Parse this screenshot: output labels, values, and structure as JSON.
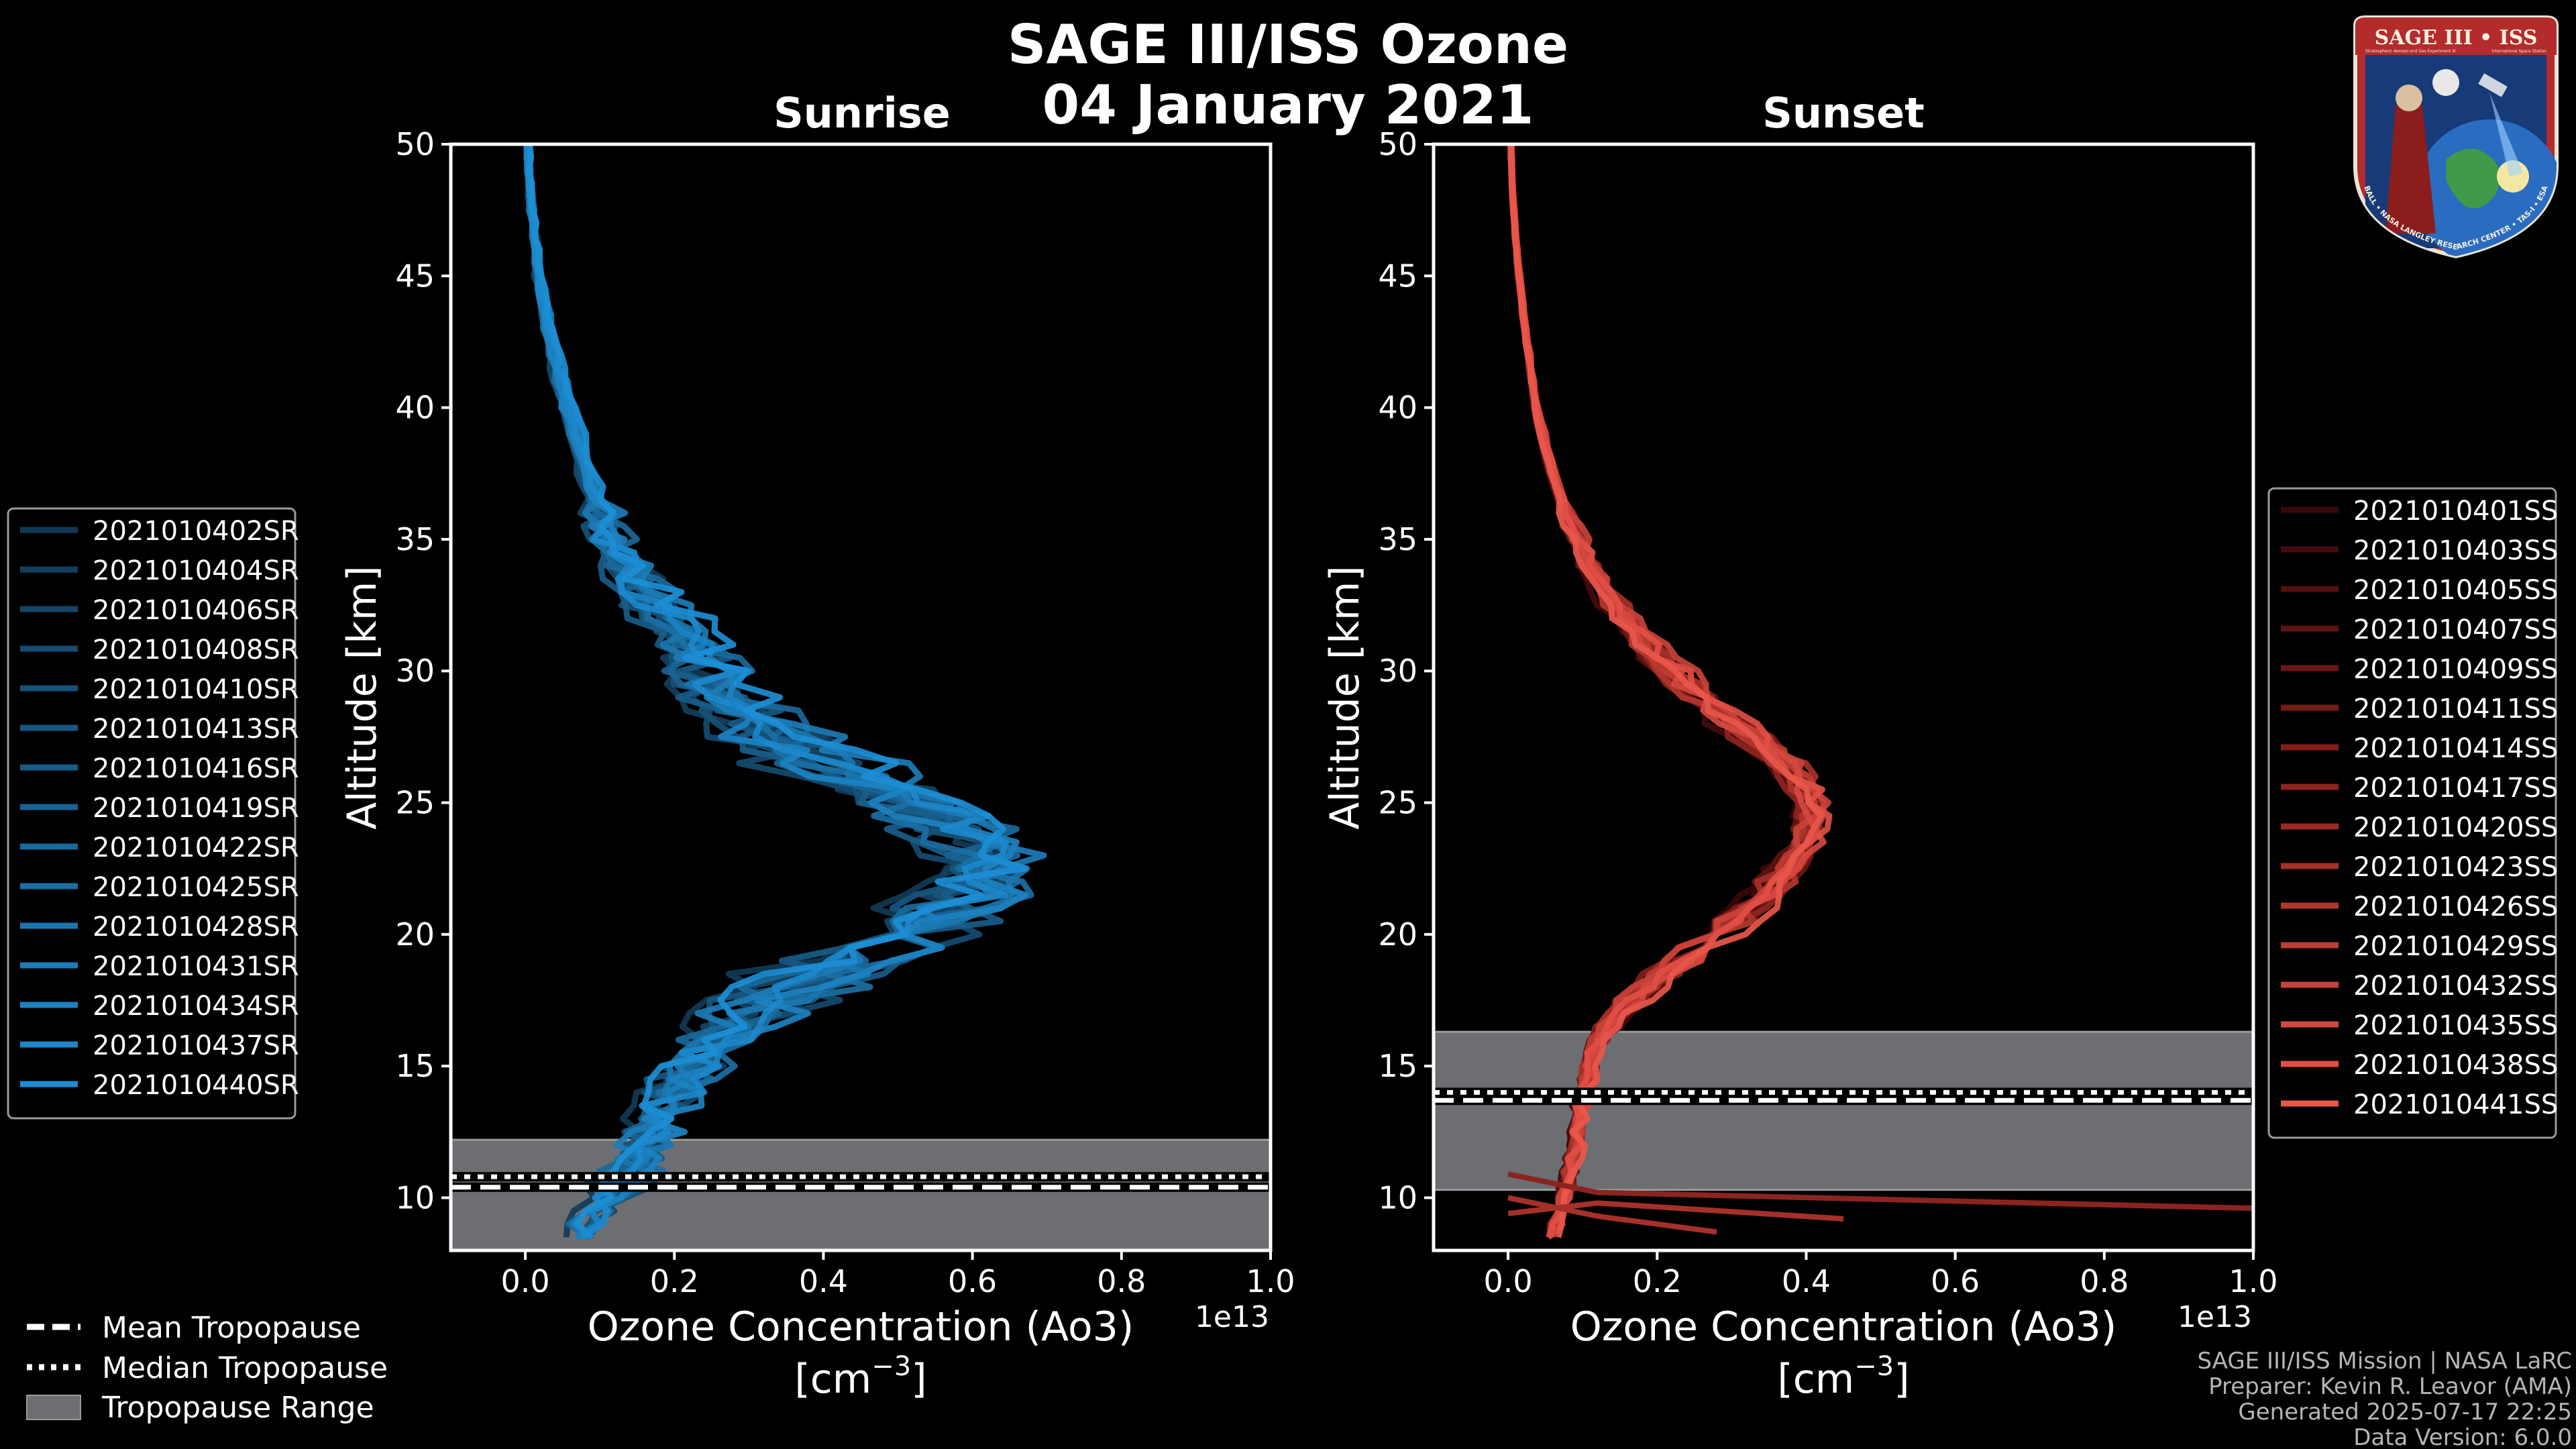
{
  "title": "SAGE III/ISS Ozone",
  "date": "04 January 2021",
  "logo": {
    "top_text": "SAGE III • ISS",
    "sub_left": "Stratospheric Aerosol and Gas Experiment III",
    "sub_right": "International Space Station",
    "ring_text": "BALL • NASA LANGLEY RESEARCH CENTER • TAS-I • ESA"
  },
  "footer": {
    "line1": "SAGE III/ISS Mission | NASA LaRC",
    "line2": "Preparer: Kevin R. Leavor (AMA)",
    "line3": "Generated 2025-07-17 22:25",
    "line4": "Data Version: 6.0.0"
  },
  "tropopause_legend": [
    {
      "label": "Mean Tropopause",
      "style": "dashed"
    },
    {
      "label": "Median Tropopause",
      "style": "dotted"
    },
    {
      "label": "Tropopause Range",
      "style": "patch"
    }
  ],
  "chart_data": [
    {
      "type": "line",
      "panel": "sunrise",
      "title": "Sunrise",
      "xlabel": "Ozone Concentration (Ao3)",
      "xunit": "[cm",
      "xunit_sup": "−3",
      "xunit_end": "]",
      "ylabel": "Altitude [km]",
      "xlim": [
        -0.1,
        1.0
      ],
      "ylim": [
        8,
        50
      ],
      "x_offset_label": "1e13",
      "xticks": [
        0.0,
        0.2,
        0.4,
        0.6,
        0.8,
        1.0
      ],
      "xtick_labels": [
        "0.0",
        "0.2",
        "0.4",
        "0.6",
        "0.8",
        "1.0"
      ],
      "yticks": [
        10,
        15,
        20,
        25,
        30,
        35,
        40,
        45,
        50
      ],
      "ytick_labels": [
        "10",
        "15",
        "20",
        "25",
        "30",
        "35",
        "40",
        "45",
        "50"
      ],
      "tropopause_range": [
        8.0,
        12.2
      ],
      "mean_tropopause": 10.4,
      "median_tropopause": 10.8,
      "legend_position": "left",
      "series_labels": [
        "2021010402SR",
        "2021010404SR",
        "2021010406SR",
        "2021010408SR",
        "2021010410SR",
        "2021010413SR",
        "2021010416SR",
        "2021010419SR",
        "2021010422SR",
        "2021010425SR",
        "2021010428SR",
        "2021010431SR",
        "2021010434SR",
        "2021010437SR",
        "2021010440SR"
      ],
      "series_colors": [
        "#123a56",
        "#133f5e",
        "#144566",
        "#154b6f",
        "#165177",
        "#175780",
        "#185d89",
        "#196392",
        "#1a699b",
        "#1b6fa4",
        "#1b76ae",
        "#1c7cb7",
        "#1c82c1",
        "#1c88cb",
        "#1c8ed5"
      ],
      "profile_altitudes": [
        8.5,
        9,
        10,
        11,
        12,
        13,
        14,
        15,
        16,
        17,
        18,
        19,
        20,
        21,
        22,
        23,
        24,
        25,
        26,
        27,
        28,
        29,
        30,
        31,
        32,
        33,
        34,
        35,
        36,
        37,
        38,
        39,
        40,
        42,
        44,
        46,
        48,
        50
      ],
      "profile_base": [
        0.07,
        0.08,
        0.1,
        0.13,
        0.15,
        0.16,
        0.18,
        0.2,
        0.23,
        0.27,
        0.33,
        0.4,
        0.47,
        0.53,
        0.57,
        0.57,
        0.53,
        0.47,
        0.4,
        0.33,
        0.28,
        0.24,
        0.22,
        0.2,
        0.17,
        0.14,
        0.12,
        0.1,
        0.09,
        0.08,
        0.07,
        0.06,
        0.05,
        0.035,
        0.02,
        0.012,
        0.006,
        0.003
      ]
    },
    {
      "type": "line",
      "panel": "sunset",
      "title": "Sunset",
      "xlabel": "Ozone Concentration (Ao3)",
      "xunit": "[cm",
      "xunit_sup": "−3",
      "xunit_end": "]",
      "ylabel": "Altitude [km]",
      "xlim": [
        -0.1,
        1.0
      ],
      "ylim": [
        8,
        50
      ],
      "x_offset_label": "1e13",
      "xticks": [
        0.0,
        0.2,
        0.4,
        0.6,
        0.8,
        1.0
      ],
      "xtick_labels": [
        "0.0",
        "0.2",
        "0.4",
        "0.6",
        "0.8",
        "1.0"
      ],
      "yticks": [
        10,
        15,
        20,
        25,
        30,
        35,
        40,
        45,
        50
      ],
      "ytick_labels": [
        "10",
        "15",
        "20",
        "25",
        "30",
        "35",
        "40",
        "45",
        "50"
      ],
      "tropopause_range": [
        10.3,
        16.3
      ],
      "mean_tropopause": 13.7,
      "median_tropopause": 14.0,
      "legend_position": "right",
      "series_labels": [
        "2021010401SS",
        "2021010403SS",
        "2021010405SS",
        "2021010407SS",
        "2021010409SS",
        "2021010411SS",
        "2021010414SS",
        "2021010417SS",
        "2021010420SS",
        "2021010423SS",
        "2021010426SS",
        "2021010429SS",
        "2021010432SS",
        "2021010435SS",
        "2021010438SS",
        "2021010441SS"
      ],
      "series_colors": [
        "#3a0808",
        "#450b0b",
        "#510f0e",
        "#5d1311",
        "#691714",
        "#751b17",
        "#811f1b",
        "#8d241f",
        "#992a24",
        "#a53029",
        "#b1362e",
        "#bd3c33",
        "#c94239",
        "#d5483f",
        "#e14e44",
        "#e8574b"
      ],
      "profile_altitudes": [
        8.5,
        9,
        10,
        11,
        12,
        13,
        14,
        15,
        16,
        17,
        18,
        19,
        20,
        21,
        22,
        23,
        24,
        25,
        26,
        27,
        28,
        29,
        30,
        31,
        32,
        33,
        34,
        35,
        36,
        37,
        38,
        39,
        40,
        42,
        44,
        46,
        48,
        50
      ],
      "profile_base": [
        0.06,
        0.07,
        0.08,
        0.09,
        0.1,
        0.1,
        0.11,
        0.12,
        0.13,
        0.16,
        0.2,
        0.25,
        0.3,
        0.35,
        0.39,
        0.42,
        0.44,
        0.44,
        0.42,
        0.38,
        0.33,
        0.28,
        0.24,
        0.2,
        0.17,
        0.14,
        0.12,
        0.1,
        0.085,
        0.07,
        0.06,
        0.05,
        0.04,
        0.03,
        0.02,
        0.012,
        0.007,
        0.004
      ]
    }
  ]
}
